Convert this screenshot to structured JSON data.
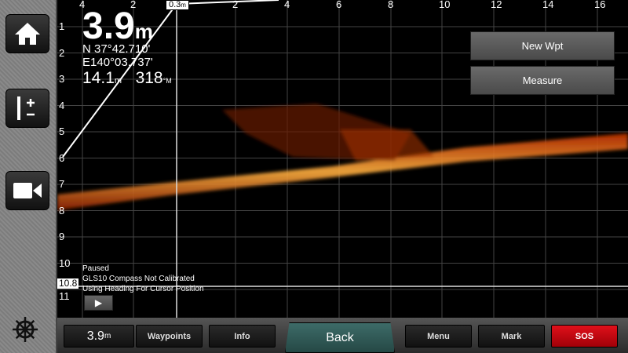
{
  "sidebar": {
    "items": [
      {
        "icon": "home-icon"
      },
      {
        "icon": "zoom-range-icon"
      },
      {
        "icon": "camera-icon"
      },
      {
        "icon": "helm-wheel-icon"
      }
    ]
  },
  "scale": {
    "top_ticks": [
      "4",
      "2",
      "2",
      "4",
      "6",
      "8",
      "10",
      "12",
      "14",
      "16"
    ],
    "left_ticks": [
      "1",
      "2",
      "3",
      "4",
      "5",
      "6",
      "7",
      "8",
      "9",
      "10",
      "11"
    ],
    "top_marker": "0.3",
    "top_marker_unit": "m",
    "cursor_depth": "10.8"
  },
  "readout": {
    "depth": "3.9",
    "depth_unit": "m",
    "lat": "N  37°42.710'",
    "lon": "E140°03.737'",
    "distance": "14.1",
    "distance_unit": "m",
    "bearing": "318",
    "bearing_unit": "°M"
  },
  "actions": {
    "new_wpt": "New Wpt",
    "measure": "Measure"
  },
  "status": {
    "line1": "Paused",
    "line2": "GLS10 Compass Not Calibrated",
    "line3": "Using Heading For Cursor Position"
  },
  "bottom": {
    "depth": "3.9",
    "depth_unit": "m",
    "waypoints": "Waypoints",
    "info": "Info",
    "back": "Back",
    "menu": "Menu",
    "mark": "Mark",
    "sos": "SOS"
  },
  "colors": {
    "sonar": "#ff7a1a",
    "sos": "#d0000f",
    "back": "#2f5a58"
  }
}
